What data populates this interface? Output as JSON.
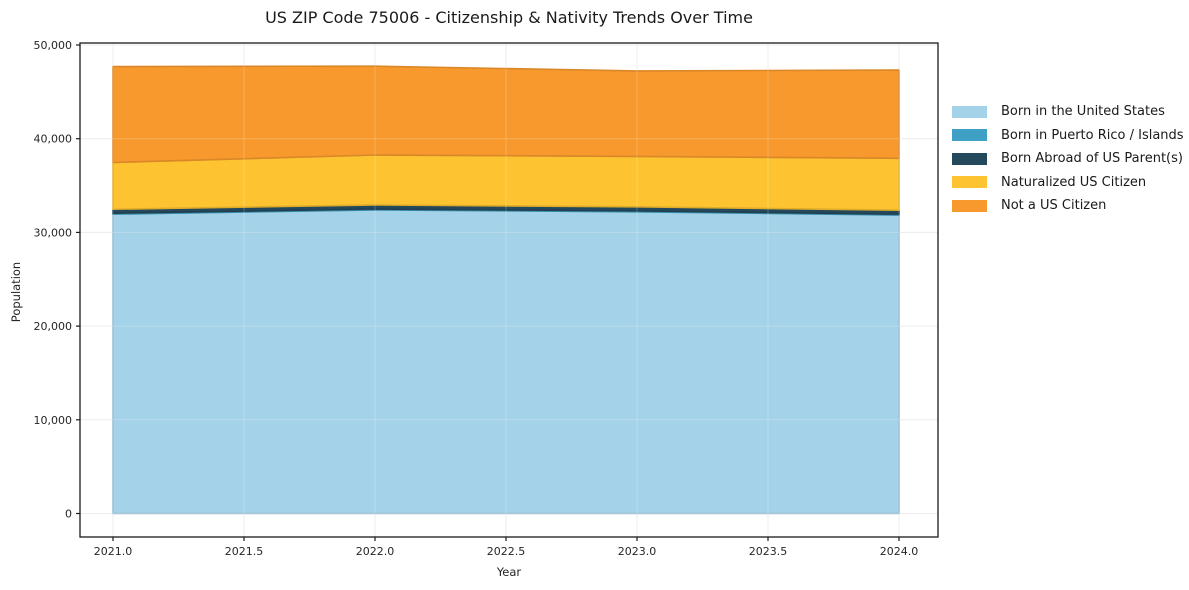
{
  "chart": {
    "title": "US ZIP Code 75006 - Citizenship & Nativity Trends Over Time"
  },
  "chart_data": {
    "type": "area",
    "stacked": true,
    "title": "US ZIP Code 75006 - Citizenship & Nativity Trends Over Time",
    "xlabel": "Year",
    "ylabel": "Population",
    "x": [
      2021,
      2022,
      2023,
      2024
    ],
    "series": [
      {
        "name": "Born in the United States",
        "color": "#a4d2e8",
        "values": [
          31950,
          32400,
          32200,
          31850
        ]
      },
      {
        "name": "Born in Puerto Rico / Islands",
        "color": "#3da0c4",
        "values": [
          100,
          100,
          100,
          100
        ]
      },
      {
        "name": "Born Abroad of US Parent(s)",
        "color": "#25495c",
        "values": [
          420,
          430,
          430,
          420
        ]
      },
      {
        "name": "Naturalized US Citizen",
        "color": "#fdc330",
        "values": [
          4990,
          5330,
          5380,
          5540
        ]
      },
      {
        "name": "Not a US Citizen",
        "color": "#f8992d",
        "values": [
          10240,
          9480,
          9120,
          9420
        ]
      }
    ],
    "totals": [
      47700,
      47740,
      47230,
      47330
    ],
    "xlim": [
      2021,
      2024
    ],
    "ylim": [
      0,
      50000
    ],
    "xticks": {
      "values": [
        2021.0,
        2021.5,
        2022.0,
        2022.5,
        2023.0,
        2023.5,
        2024.0
      ],
      "labels": [
        "2021.0",
        "2021.5",
        "2022.0",
        "2022.5",
        "2023.0",
        "2023.5",
        "2024.0"
      ]
    },
    "yticks": {
      "values": [
        0,
        10000,
        20000,
        30000,
        40000,
        50000
      ],
      "labels": [
        "0",
        "10,000",
        "20,000",
        "30,000",
        "40,000",
        "50,000"
      ]
    },
    "grid": true,
    "legend_position": "right"
  },
  "colors": {
    "grid": "#e7e7e7",
    "spine": "#1a1a1a",
    "tick_label": "#262626"
  }
}
